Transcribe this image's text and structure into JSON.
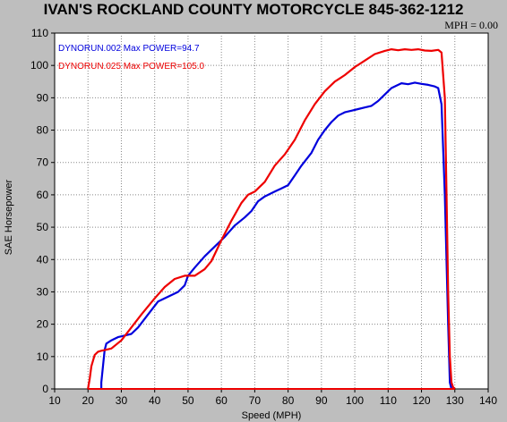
{
  "header": {
    "title": "IVAN'S ROCKLAND COUNTY MOTORCYCLE 845-362-1212",
    "mph_readout": "MPH = 0.00"
  },
  "chart_data": {
    "type": "line",
    "xlabel": "Speed (MPH)",
    "ylabel": "SAE Horsepower",
    "xlim": [
      10,
      140
    ],
    "ylim": [
      0,
      110
    ],
    "xticks": [
      10,
      20,
      30,
      40,
      50,
      60,
      70,
      80,
      90,
      100,
      110,
      120,
      130,
      140
    ],
    "yticks": [
      0,
      10,
      20,
      30,
      40,
      50,
      60,
      70,
      80,
      90,
      100,
      110
    ],
    "grid": true,
    "legend_position": "top-left",
    "series": [
      {
        "name": "DYNORUN.002  Max POWER=94.7",
        "color": "#0000dd",
        "x": [
          24,
          24,
          25,
          25.5,
          27,
          29,
          31,
          33,
          35,
          38,
          41,
          44,
          47,
          49,
          50,
          52,
          55,
          58,
          61,
          64,
          67,
          69,
          71,
          73,
          76,
          78,
          80,
          82,
          84,
          87,
          89,
          91,
          93,
          95,
          97,
          99,
          101,
          103,
          105,
          107,
          109,
          111,
          113,
          114,
          116,
          118,
          120,
          122,
          124,
          125,
          126,
          127,
          128,
          128.5,
          129
        ],
        "y": [
          0,
          2,
          12,
          14,
          15,
          16,
          16.5,
          17,
          19,
          23,
          27,
          28.5,
          30,
          32,
          35,
          37.5,
          41,
          44,
          47,
          50.5,
          53,
          55,
          58,
          59.5,
          61,
          62,
          63,
          66,
          69,
          73,
          77,
          80,
          82.5,
          84.5,
          85.5,
          86,
          86.5,
          87,
          87.5,
          89,
          91,
          93,
          94,
          94.5,
          94.2,
          94.7,
          94.3,
          94,
          93.5,
          93,
          88,
          60,
          20,
          2,
          0
        ]
      },
      {
        "name": "DYNORUN.025  Max POWER=105.0",
        "color": "#ee0000",
        "x": [
          20,
          20.5,
          21,
          22,
          23,
          24,
          25,
          27,
          30,
          33,
          36,
          40,
          43,
          46,
          49,
          52,
          55,
          57,
          60,
          63,
          66,
          68,
          70,
          73,
          76,
          79,
          82,
          85,
          88,
          91,
          94,
          97,
          100,
          103,
          106,
          109,
          111,
          113,
          115,
          117,
          119,
          121,
          123,
          125,
          126,
          127,
          127.5,
          128,
          128.5,
          129,
          129.5,
          130
        ],
        "y": [
          0,
          3,
          7,
          10.5,
          11.5,
          11.8,
          12,
          12.5,
          15,
          19,
          23,
          28,
          31.5,
          34,
          35,
          35,
          37,
          39.5,
          46,
          52,
          57.5,
          60,
          61,
          64,
          69,
          72.5,
          77,
          83,
          88,
          92,
          95,
          97,
          99.5,
          101.5,
          103.5,
          104.5,
          105,
          104.7,
          105,
          104.8,
          105,
          104.6,
          104.5,
          104.8,
          104,
          90,
          60,
          30,
          10,
          2,
          0.5,
          0
        ]
      }
    ]
  }
}
